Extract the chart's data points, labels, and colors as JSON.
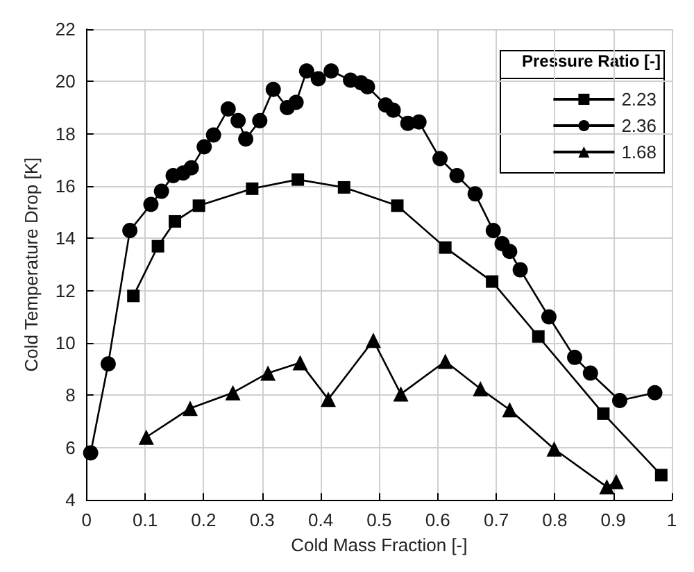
{
  "chart_data": {
    "type": "line",
    "xlabel": "Cold Mass Fraction [-]",
    "ylabel": "Cold Temperature Drop [K]",
    "legend_title": "Pressure Ratio [-]",
    "legend": "top right",
    "grid": true,
    "xlim": [
      0,
      1
    ],
    "xticks": [
      0,
      0.1,
      0.2,
      0.3,
      0.4,
      0.5,
      0.6,
      0.7,
      0.8,
      0.9,
      1
    ],
    "ylim": [
      4,
      22
    ],
    "yticks": [
      4,
      6,
      8,
      10,
      12,
      14,
      16,
      18,
      20,
      22
    ],
    "line_style": "solid",
    "series": [
      {
        "name": "2.23",
        "color": "#000000",
        "marker": "square",
        "x": [
          0.08,
          0.122,
          0.151,
          0.192,
          0.283,
          0.361,
          0.44,
          0.531,
          0.613,
          0.693,
          0.772,
          0.883,
          0.982
        ],
        "values": [
          11.8,
          13.7,
          14.65,
          15.25,
          15.9,
          16.25,
          15.95,
          15.25,
          13.65,
          12.35,
          10.25,
          7.3,
          4.95
        ]
      },
      {
        "name": "2.36",
        "color": "#000000",
        "marker": "circle",
        "x": [
          0.007,
          0.037,
          0.074,
          0.11,
          0.128,
          0.148,
          0.165,
          0.179,
          0.201,
          0.217,
          0.242,
          0.259,
          0.272,
          0.296,
          0.319,
          0.343,
          0.358,
          0.376,
          0.396,
          0.418,
          0.451,
          0.469,
          0.48,
          0.511,
          0.524,
          0.549,
          0.568,
          0.604,
          0.633,
          0.664,
          0.695,
          0.71,
          0.723,
          0.741,
          0.79,
          0.834,
          0.861,
          0.911,
          0.971
        ],
        "values": [
          5.8,
          9.2,
          14.3,
          15.3,
          15.8,
          16.4,
          16.5,
          16.7,
          17.5,
          17.95,
          18.95,
          18.5,
          17.8,
          18.5,
          19.7,
          19,
          19.2,
          20.4,
          20.1,
          20.4,
          20.05,
          19.95,
          19.8,
          19.1,
          18.9,
          18.4,
          18.45,
          17.05,
          16.4,
          15.7,
          14.3,
          13.8,
          13.5,
          12.8,
          11,
          9.45,
          8.85,
          7.8,
          8.1
        ]
      },
      {
        "name": "1.68",
        "color": "#000000",
        "marker": "triangle",
        "x": [
          0.102,
          0.177,
          0.25,
          0.31,
          0.365,
          0.413,
          0.49,
          0.537,
          0.613,
          0.673,
          0.723,
          0.799,
          0.889,
          0.905
        ],
        "values": [
          6.4,
          7.5,
          8.1,
          8.85,
          9.25,
          7.85,
          10.1,
          8.05,
          9.3,
          8.25,
          7.45,
          5.95,
          4.5,
          4.7
        ]
      }
    ]
  }
}
